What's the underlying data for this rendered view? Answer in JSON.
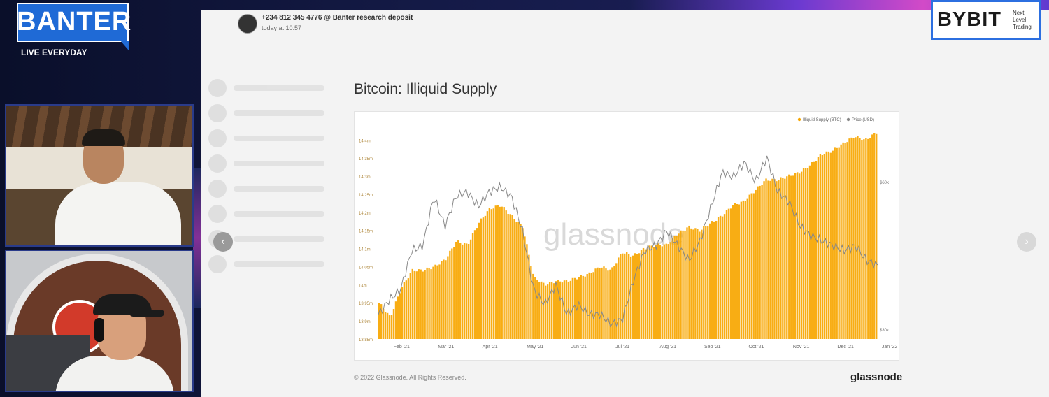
{
  "stream": {
    "brand": "BANTER",
    "tagline": "LIVE EVERYDAY",
    "sponsor_name": "BYBIT",
    "sponsor_tagline": "Next Level Trading",
    "colors": {
      "banter_blue": "#1f6ad6",
      "frame_dark": "#0c1330",
      "bybit_border": "#2c6fe0"
    }
  },
  "message": {
    "sender": "+234 812 345 4776 @ Banter research deposit",
    "time": "today at 10:57"
  },
  "nav": {
    "prev_icon": "chevron-left-icon",
    "next_icon": "chevron-right-icon",
    "prev_glyph": "‹",
    "next_glyph": "›"
  },
  "chart_footer": {
    "copyright": "© 2022 Glassnode. All Rights Reserved.",
    "brand": "glassnode"
  },
  "chart_data": {
    "type": "area",
    "title": "Bitcoin: Illiquid Supply",
    "watermark": "glassnode",
    "legend_position": "top-right",
    "legend": [
      {
        "name": "Illiquid Supply (BTC)",
        "color": "#f7a600"
      },
      {
        "name": "Price (USD)",
        "color": "#888888"
      }
    ],
    "x_ticks": [
      "Feb '21",
      "Mar '21",
      "Apr '21",
      "May '21",
      "Jun '21",
      "Jul '21",
      "Aug '21",
      "Sep '21",
      "Oct '21",
      "Nov '21",
      "Dec '21",
      "Jan '22"
    ],
    "y_ticks": [
      "13.85m",
      "13.9m",
      "13.95m",
      "14m",
      "14.05m",
      "14.1m",
      "14.15m",
      "14.2m",
      "14.25m",
      "14.3m",
      "14.35m",
      "14.4m"
    ],
    "y2_ticks": [
      "$30k",
      "$60k"
    ],
    "ylim": [
      13.85,
      14.42
    ],
    "y2lim": [
      28000,
      70000
    ],
    "series": [
      {
        "name": "Illiquid Supply (BTC)",
        "unit": "M BTC",
        "x": [
          0,
          0.25,
          0.5,
          0.75,
          1,
          1.25,
          1.5,
          1.75,
          2,
          2.25,
          2.5,
          2.75,
          3,
          3.25,
          3.5,
          3.75,
          4,
          4.25,
          4.5,
          4.75,
          5,
          5.25,
          5.5,
          5.75,
          6,
          6.25,
          6.5,
          6.75,
          7,
          7.25,
          7.5,
          7.75,
          8,
          8.25,
          8.5,
          8.75,
          9,
          9.25,
          9.5,
          9.75,
          10,
          10.25,
          10.5,
          10.75,
          11,
          11.25
        ],
        "values": [
          13.95,
          13.91,
          13.99,
          14.04,
          14.04,
          14.05,
          14.07,
          14.12,
          14.11,
          14.17,
          14.21,
          14.22,
          14.19,
          14.16,
          14.02,
          14.0,
          14.01,
          14.01,
          14.02,
          14.03,
          14.05,
          14.04,
          14.09,
          14.08,
          14.1,
          14.11,
          14.11,
          14.14,
          14.16,
          14.15,
          14.17,
          14.19,
          14.22,
          14.23,
          14.26,
          14.29,
          14.29,
          14.3,
          14.31,
          14.33,
          14.36,
          14.37,
          14.39,
          14.41,
          14.4,
          14.42
        ]
      },
      {
        "name": "Price (USD)",
        "unit": "USD",
        "x": [
          0,
          0.25,
          0.5,
          0.75,
          1,
          1.25,
          1.5,
          1.75,
          2,
          2.25,
          2.5,
          2.75,
          3,
          3.25,
          3.5,
          3.75,
          4,
          4.25,
          4.5,
          4.75,
          5,
          5.25,
          5.5,
          5.75,
          6,
          6.25,
          6.5,
          6.75,
          7,
          7.25,
          7.5,
          7.75,
          8,
          8.25,
          8.5,
          8.75,
          9,
          9.25,
          9.5,
          9.75,
          10,
          10.25,
          10.5,
          10.75,
          11,
          11.25
        ],
        "values": [
          33000,
          36000,
          38000,
          46000,
          47000,
          57000,
          51000,
          57000,
          58000,
          55000,
          58000,
          59000,
          57000,
          50000,
          38000,
          35000,
          39000,
          33000,
          35000,
          33000,
          33000,
          31000,
          32000,
          40000,
          46000,
          47000,
          50000,
          47000,
          44000,
          48000,
          55000,
          62000,
          61000,
          64000,
          60000,
          65000,
          58000,
          56000,
          51000,
          49000,
          48000,
          47000,
          46000,
          47000,
          44000,
          43000
        ]
      }
    ]
  }
}
